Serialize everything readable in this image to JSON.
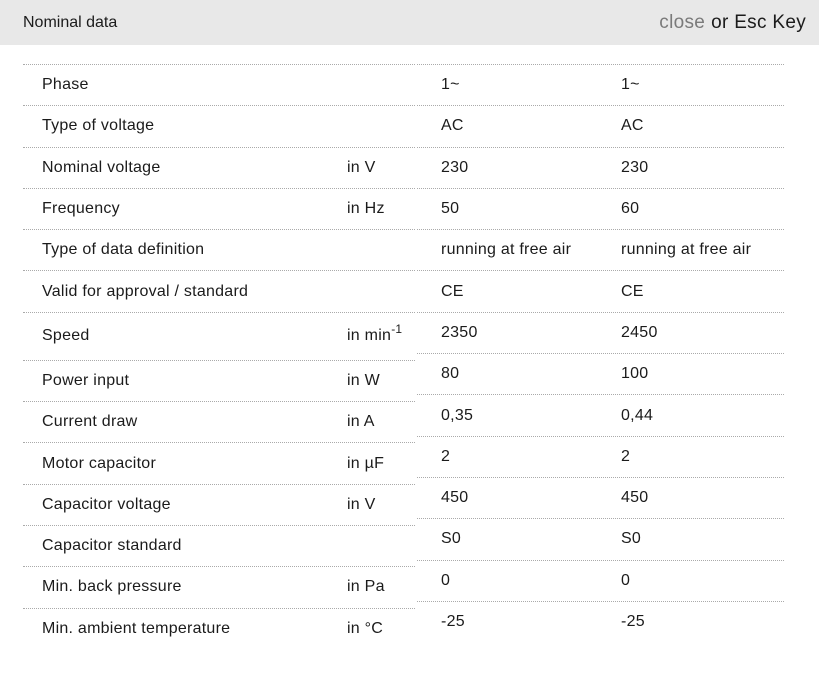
{
  "header": {
    "title": "Nominal data",
    "close_label": "close",
    "close_suffix": "or Esc Key"
  },
  "colors": {
    "header_bg": "#e8e8e8",
    "text": "#1b1b1b",
    "close_link": "#7a7a7a",
    "divider": "#aaaaaa"
  },
  "table": {
    "rows": [
      {
        "label": "Phase",
        "unit": "",
        "unit_sup": "",
        "values": [
          "1~",
          "1~"
        ]
      },
      {
        "label": "Type of voltage",
        "unit": "",
        "unit_sup": "",
        "values": [
          "AC",
          "AC"
        ]
      },
      {
        "label": "Nominal voltage",
        "unit": "in V",
        "unit_sup": "",
        "values": [
          "230",
          "230"
        ]
      },
      {
        "label": "Frequency",
        "unit": "in Hz",
        "unit_sup": "",
        "values": [
          "50",
          "60"
        ]
      },
      {
        "label": "Type of data definition",
        "unit": "",
        "unit_sup": "",
        "values": [
          "running at free air",
          "running at free air"
        ]
      },
      {
        "label": "Valid for approval / standard",
        "unit": "",
        "unit_sup": "",
        "values": [
          "CE",
          "CE"
        ]
      },
      {
        "label": "Speed",
        "unit": "in min",
        "unit_sup": "-1",
        "values": [
          "2350",
          "2450"
        ]
      },
      {
        "label": "Power input",
        "unit": "in W",
        "unit_sup": "",
        "values": [
          "80",
          "100"
        ]
      },
      {
        "label": "Current draw",
        "unit": "in A",
        "unit_sup": "",
        "values": [
          "0,35",
          "0,44"
        ]
      },
      {
        "label": "Motor capacitor",
        "unit": "in µF",
        "unit_sup": "",
        "values": [
          "2",
          "2"
        ]
      },
      {
        "label": "Capacitor voltage",
        "unit": "in V",
        "unit_sup": "",
        "values": [
          "450",
          "450"
        ]
      },
      {
        "label": "Capacitor standard",
        "unit": "",
        "unit_sup": "",
        "values": [
          "S0",
          "S0"
        ]
      },
      {
        "label": "Min. back pressure",
        "unit": "in Pa",
        "unit_sup": "",
        "values": [
          "0",
          "0"
        ]
      },
      {
        "label": "Min. ambient temperature",
        "unit": "in °C",
        "unit_sup": "",
        "values": [
          "-25",
          "-25"
        ]
      }
    ]
  }
}
